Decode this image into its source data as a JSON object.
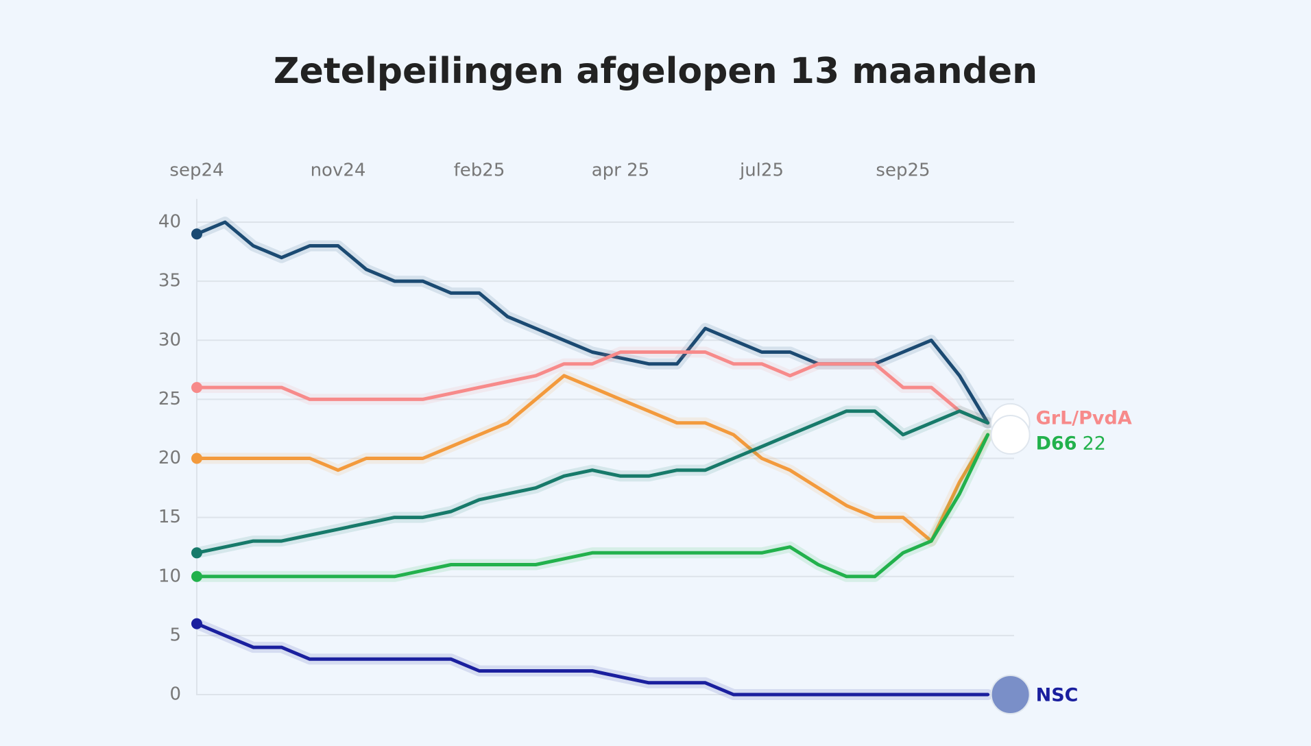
{
  "chart_data": {
    "type": "line",
    "title": "Zetelpeilingen afgelopen 13 maanden",
    "categories": [
      "sep24",
      null,
      null,
      null,
      null,
      "nov24",
      null,
      null,
      null,
      null,
      "feb25",
      null,
      null,
      null,
      null,
      "apr 25",
      null,
      null,
      null,
      null,
      "jul25",
      null,
      null,
      null,
      null,
      "sep25",
      null,
      null,
      null
    ],
    "series": [
      {
        "color": "#1b4a72",
        "values": [
          39,
          40,
          38,
          37,
          38,
          38,
          36,
          35,
          35,
          34,
          34,
          32,
          31,
          30,
          29,
          28.5,
          28,
          28,
          31,
          30,
          29,
          29,
          28,
          28,
          28,
          29,
          30,
          27,
          23
        ]
      },
      {
        "name": "GrL/PvdA",
        "color": "#f78a8a",
        "values": [
          26,
          26,
          26,
          26,
          25,
          25,
          25,
          25,
          25,
          25.5,
          26,
          26.5,
          27,
          28,
          28,
          29,
          29,
          29,
          29,
          28,
          28,
          27,
          28,
          28,
          28,
          26,
          26,
          24,
          23
        ]
      },
      {
        "color": "#f39a3c",
        "values": [
          20,
          20,
          20,
          20,
          20,
          19,
          20,
          20,
          20,
          21,
          22,
          23,
          25,
          27,
          26,
          25,
          24,
          23,
          23,
          22,
          20,
          19,
          17.5,
          16,
          15,
          15,
          13,
          18,
          22
        ]
      },
      {
        "color": "#177a6a",
        "values": [
          12,
          12.5,
          13,
          13,
          13.5,
          14,
          14.5,
          15,
          15,
          15.5,
          16.5,
          17,
          17.5,
          18.5,
          19,
          18.5,
          18.5,
          19,
          19,
          20,
          21,
          22,
          23,
          24,
          24,
          22,
          23,
          24,
          23
        ]
      },
      {
        "name": "D66",
        "color": "#22b14c",
        "values": [
          10,
          10,
          10,
          10,
          10,
          10,
          10,
          10,
          10.5,
          11,
          11,
          11,
          11,
          11.5,
          12,
          12,
          12,
          12,
          12,
          12,
          12,
          12.5,
          11,
          10,
          10,
          12,
          13,
          17,
          22
        ],
        "value_labels": [
          null,
          null,
          null,
          null,
          null,
          null,
          null,
          null,
          null,
          null,
          null,
          null,
          null,
          null,
          null,
          null,
          null,
          null,
          null,
          null,
          null,
          null,
          null,
          null,
          null,
          null,
          null,
          null,
          "22"
        ]
      },
      {
        "name": "NSC",
        "color": "#1a1f9e",
        "values": [
          6,
          5,
          4,
          4,
          3,
          3,
          3,
          3,
          3,
          3,
          2,
          2,
          2,
          2,
          2,
          1.5,
          1,
          1,
          1,
          0,
          0,
          0,
          0,
          0,
          0,
          0,
          0,
          0,
          0
        ]
      }
    ],
    "ylim": [
      0,
      40
    ],
    "yticks": [
      0,
      5,
      10,
      15,
      20,
      25,
      30,
      35,
      40
    ],
    "grid": true
  }
}
